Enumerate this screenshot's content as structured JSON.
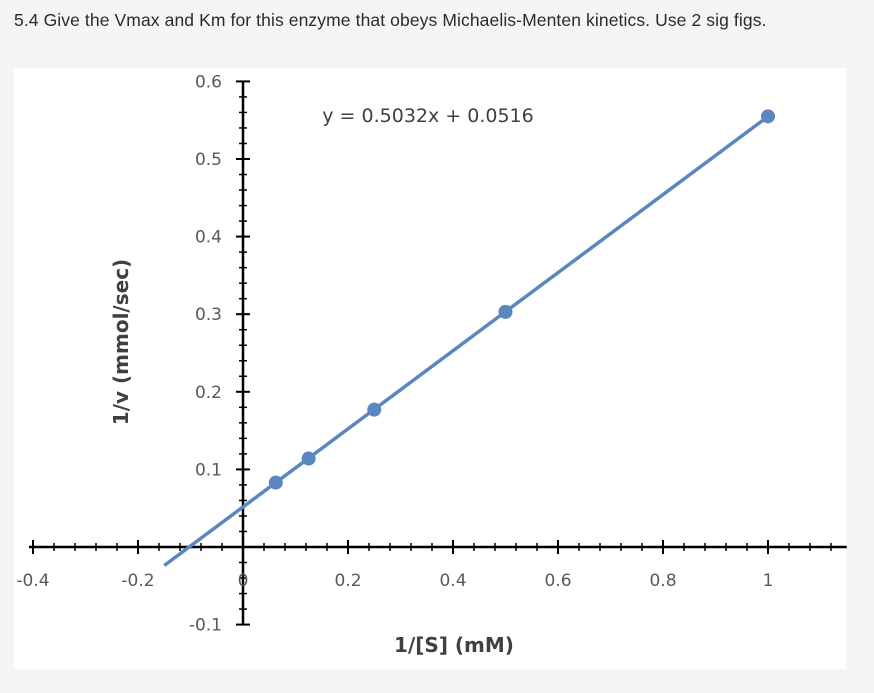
{
  "question": {
    "text": "5.4 Give the Vmax and Km for this enzyme that obeys Michaelis-Menten kinetics. Use 2 sig figs."
  },
  "colors": {
    "page_background": "#f5f5f7",
    "plot_background": "#ffffff",
    "series": "#5a87c0",
    "axis": "#000000",
    "tick_label": "#595959"
  },
  "chart_data": {
    "type": "scatter",
    "title": "",
    "xlabel": "1/[S] (mM)",
    "ylabel": "1/v (mmol/sec)",
    "xlim": [
      -0.4,
      1.15
    ],
    "ylim": [
      -0.1,
      0.6
    ],
    "x_ticks": [
      -0.4,
      -0.2,
      0,
      0.2,
      0.4,
      0.6,
      0.8,
      1
    ],
    "x_tick_labels": [
      "-0.4",
      "-0.2",
      "0",
      "0.2",
      "0.4",
      "0.6",
      "0.8",
      "1"
    ],
    "y_ticks": [
      -0.1,
      0.1,
      0.2,
      0.3,
      0.4,
      0.5,
      0.6
    ],
    "y_tick_labels": [
      "-0.1",
      "0.1",
      "0.2",
      "0.3",
      "0.4",
      "0.5",
      "0.6"
    ],
    "x_minor_step": 0.04,
    "y_minor_step": 0.02,
    "grid": false,
    "legend": "none",
    "series": [
      {
        "x": [
          0.0625,
          0.125,
          0.25,
          0.5,
          1.0
        ],
        "y": [
          0.083,
          0.114,
          0.177,
          0.303,
          0.555
        ]
      }
    ],
    "trendline": {
      "slope": 0.5032,
      "intercept": 0.0516,
      "x_range": [
        -0.15,
        1.0
      ],
      "equation_label": "y = 0.5032x + 0.0516"
    }
  }
}
